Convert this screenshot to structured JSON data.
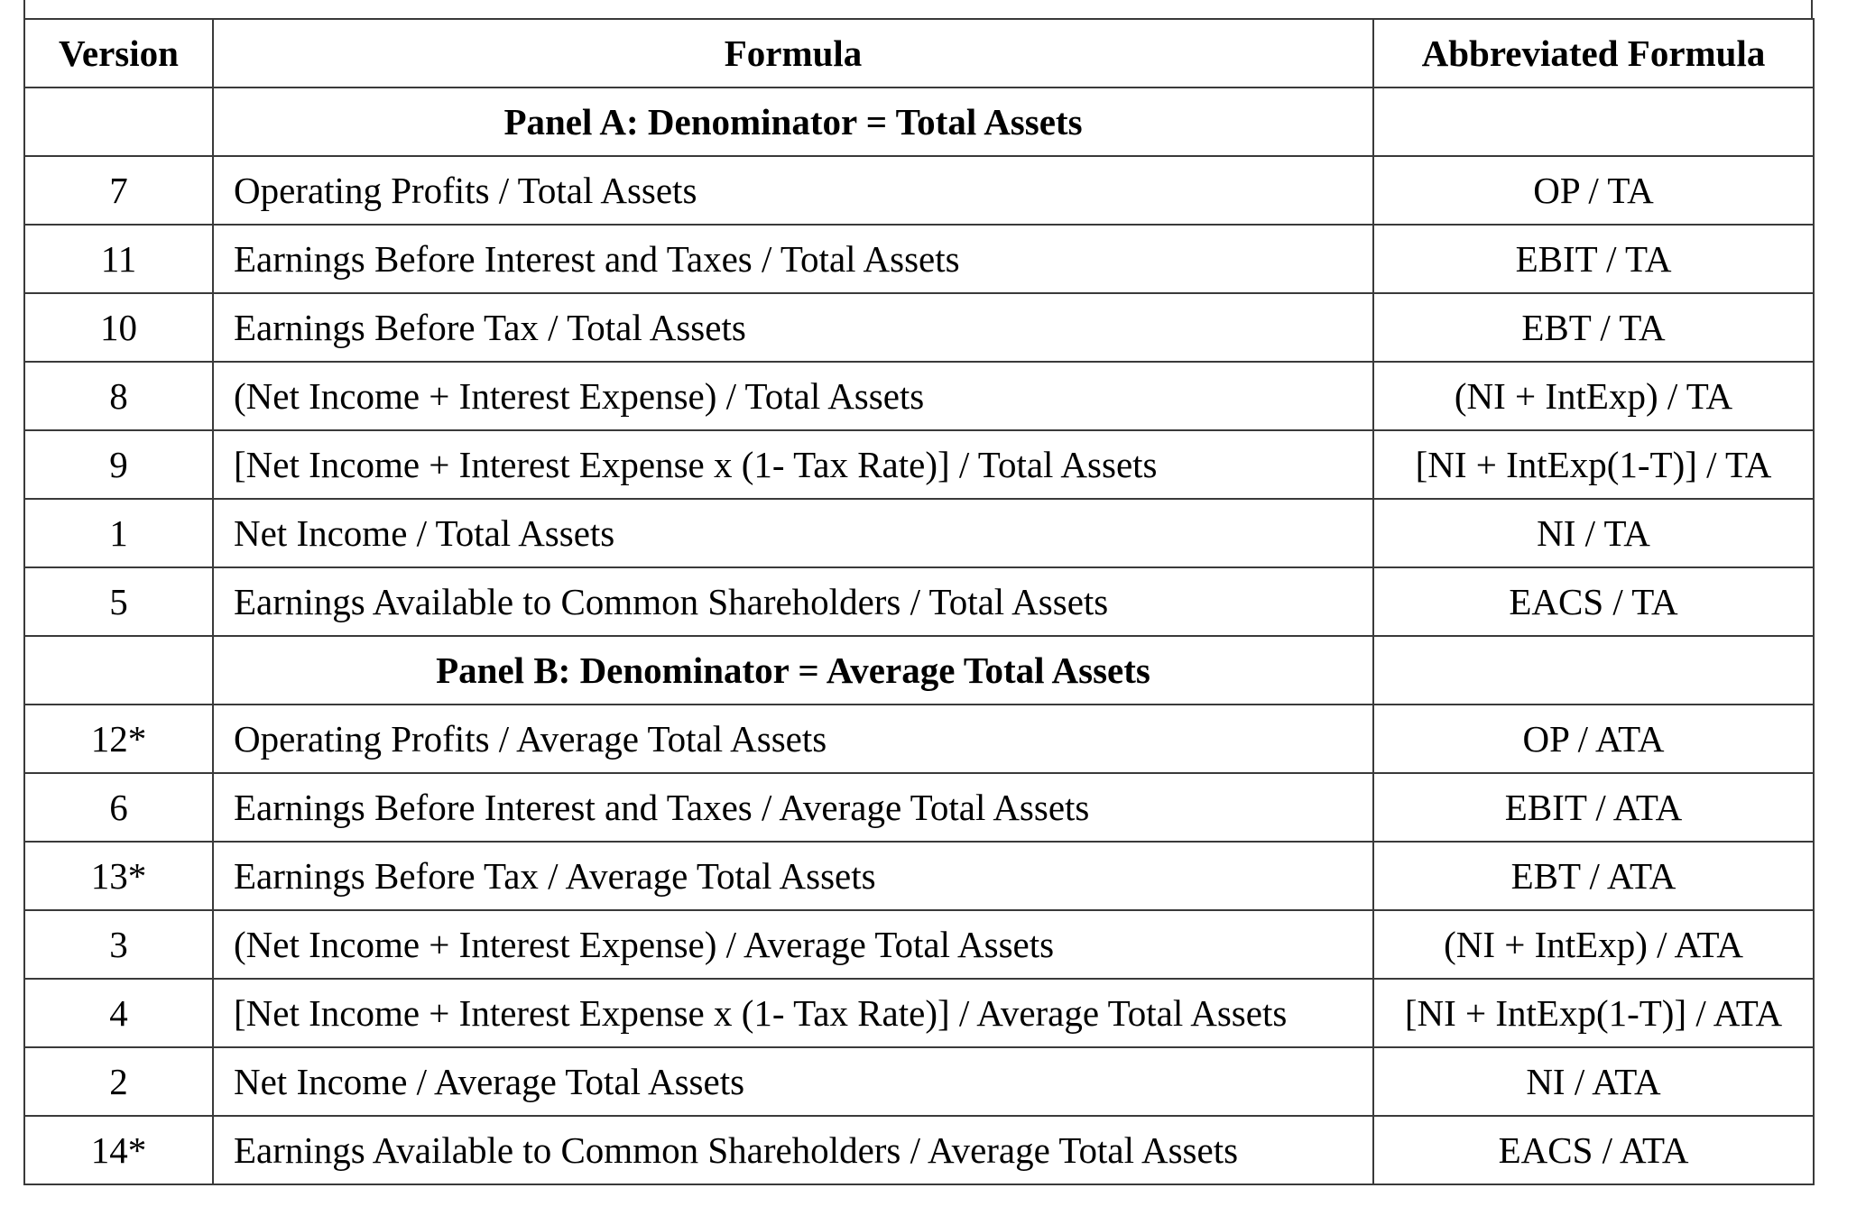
{
  "columns": {
    "version": "Version",
    "formula": "Formula",
    "abbreviated": "Abbreviated Formula"
  },
  "panel_a": {
    "title": "Panel A:  Denominator = Total Assets",
    "rows": [
      {
        "version": "7",
        "formula": "Operating Profits / Total Assets",
        "abbrev": "OP / TA"
      },
      {
        "version": "11",
        "formula": "Earnings Before Interest and Taxes / Total Assets",
        "abbrev": "EBIT / TA"
      },
      {
        "version": "10",
        "formula": "Earnings Before Tax / Total Assets",
        "abbrev": "EBT / TA"
      },
      {
        "version": "8",
        "formula": "(Net Income + Interest Expense) / Total Assets",
        "abbrev": "(NI + IntExp) / TA"
      },
      {
        "version": "9",
        "formula": "[Net Income + Interest Expense x (1- Tax Rate)] / Total Assets",
        "abbrev": "[NI + IntExp(1-T)] / TA"
      },
      {
        "version": "1",
        "formula": "Net Income / Total Assets",
        "abbrev": "NI / TA"
      },
      {
        "version": "5",
        "formula": "Earnings Available to Common Shareholders / Total Assets",
        "abbrev": "EACS / TA"
      }
    ]
  },
  "panel_b": {
    "title": "Panel B: Denominator = Average Total Assets",
    "rows": [
      {
        "version": "12*",
        "formula": "Operating Profits / Average Total Assets",
        "abbrev": "OP / ATA"
      },
      {
        "version": "6",
        "formula": "Earnings Before Interest and Taxes / Average Total Assets",
        "abbrev": "EBIT / ATA"
      },
      {
        "version": "13*",
        "formula": "Earnings Before Tax / Average Total Assets",
        "abbrev": "EBT / ATA"
      },
      {
        "version": "3",
        "formula": "(Net Income + Interest Expense) / Average Total Assets",
        "abbrev": "(NI + IntExp) / ATA"
      },
      {
        "version": "4",
        "formula": "[Net Income + Interest Expense x (1- Tax Rate)] / Average Total Assets",
        "abbrev": "[NI + IntExp(1-T)] / ATA"
      },
      {
        "version": "2",
        "formula": "Net Income / Average Total Assets",
        "abbrev": "NI / ATA"
      },
      {
        "version": "14*",
        "formula": "Earnings Available to Common Shareholders / Average Total Assets",
        "abbrev": "EACS / ATA"
      }
    ]
  }
}
